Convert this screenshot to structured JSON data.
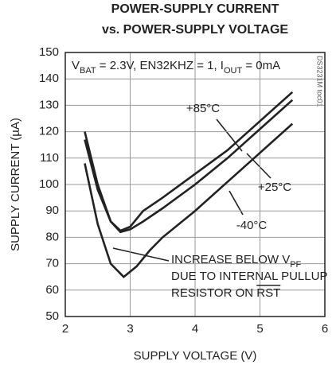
{
  "chart_data": {
    "type": "line",
    "title": [
      "POWER-SUPPLY CURRENT",
      "vs. POWER-SUPPLY VOLTAGE"
    ],
    "x_label": "SUPPLY VOLTAGE (V)",
    "y_label": "SUPPLY CURRENT (µA)",
    "side_note": "DS3231M toc01",
    "condition": [
      {
        "text": "V"
      },
      {
        "text": "BAT",
        "sub": true
      },
      {
        "text": " = 2.3V, EN32KHZ = 1, I"
      },
      {
        "text": "OUT",
        "sub": true
      },
      {
        "text": " = 0mA"
      }
    ],
    "note": [
      [
        {
          "text": "INCREASE BELOW V"
        },
        {
          "text": "PF",
          "sub": true
        }
      ],
      [
        {
          "text": "DUE TO INTERNAL PULLUP"
        }
      ],
      [
        {
          "text": "RESISTOR ON "
        },
        {
          "text": "RST",
          "overline": true
        }
      ]
    ],
    "xlim": [
      2,
      6
    ],
    "xticks": [
      2,
      3,
      4,
      5,
      6
    ],
    "ylim": [
      50,
      150
    ],
    "yticks": [
      50,
      60,
      70,
      80,
      90,
      100,
      110,
      120,
      130,
      140,
      150
    ],
    "grid": true,
    "series": [
      {
        "name": "+85°C",
        "color": "#222222",
        "x": [
          2.3,
          2.5,
          2.7,
          2.85,
          3.0,
          3.2,
          3.5,
          4.0,
          4.5,
          5.0,
          5.5
        ],
        "values": [
          120,
          100,
          86,
          82.5,
          84,
          90,
          95,
          104,
          113,
          124,
          135
        ]
      },
      {
        "name": "+25°C",
        "color": "#222222",
        "x": [
          2.3,
          2.5,
          2.7,
          2.85,
          3.0,
          3.2,
          3.5,
          4.0,
          4.5,
          5.0,
          5.5
        ],
        "values": [
          117,
          98,
          86,
          82,
          83,
          86,
          91,
          100,
          110,
          121,
          132
        ]
      },
      {
        "name": "-40°C",
        "color": "#222222",
        "x": [
          2.3,
          2.5,
          2.7,
          2.9,
          3.1,
          3.3,
          3.5,
          4.0,
          4.5,
          5.0,
          5.5
        ],
        "values": [
          108,
          85,
          70,
          65,
          69,
          75,
          80,
          90,
          101,
          112,
          123
        ]
      }
    ]
  }
}
